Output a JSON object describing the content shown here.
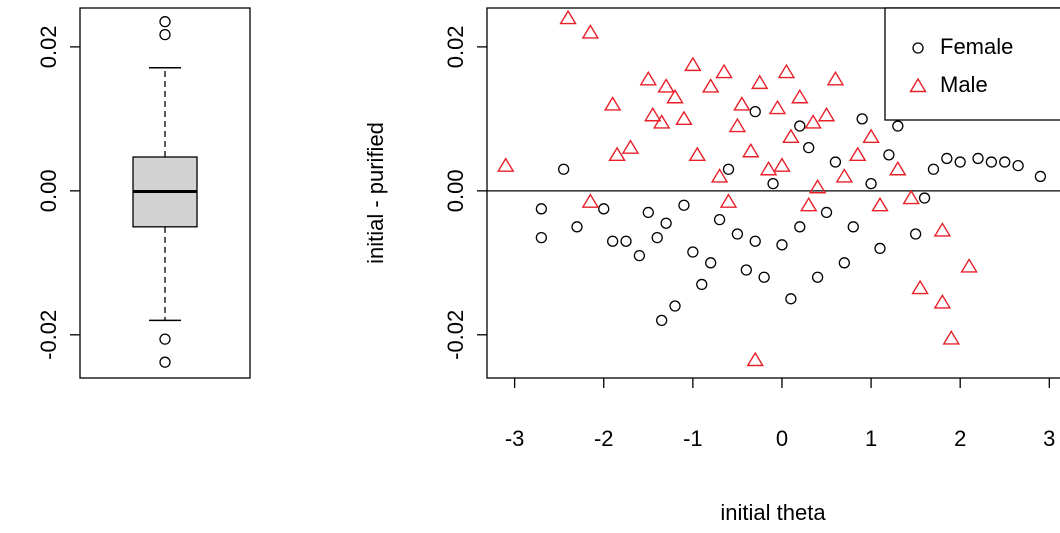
{
  "chart_data": [
    {
      "type": "box",
      "fill": "#d3d3d3",
      "ylim": [
        -0.026,
        0.0254
      ],
      "yticks": [
        -0.02,
        {
          "value": 0,
          "label": "0.00"
        },
        0.02
      ],
      "stats": {
        "whislo": -0.018,
        "q1": -0.005,
        "median": -0.0001,
        "q3": 0.0047,
        "whishi": 0.0171
      },
      "outliers": [
        0.0235,
        0.0217,
        -0.0206,
        -0.0238
      ]
    },
    {
      "type": "scatter",
      "xlabel": "initial theta",
      "ylabel": "initial - purified",
      "xlim": [
        -3.31,
        3.12
      ],
      "ylim": [
        -0.026,
        0.0254
      ],
      "xticks": [
        -3,
        -2,
        -1,
        0,
        1,
        2,
        3
      ],
      "yticks": [
        -0.02,
        {
          "value": 0,
          "label": "0.00"
        },
        0.02
      ],
      "hline": 0,
      "legend": "topright",
      "series": [
        {
          "name": "Female",
          "color": "#000000",
          "marker": "circle",
          "x": [
            -2.7,
            -2.7,
            -2.45,
            -2.3,
            -2.0,
            -1.9,
            -1.75,
            -1.6,
            -1.5,
            -1.4,
            -1.3,
            -1.35,
            -1.2,
            -1.1,
            -1.0,
            -0.9,
            -0.8,
            -0.7,
            -0.6,
            -0.5,
            -0.4,
            -0.3,
            -0.2,
            -0.1,
            0.0,
            0.1,
            0.2,
            0.3,
            0.4,
            0.5,
            0.6,
            0.7,
            0.8,
            0.9,
            1.0,
            1.1,
            1.2,
            1.3,
            1.5,
            1.6,
            1.7,
            1.85,
            2.0,
            2.2,
            2.35,
            2.5,
            2.65,
            2.9,
            -0.3,
            0.2
          ],
          "values": [
            -0.0025,
            -0.0065,
            0.003,
            -0.005,
            -0.0025,
            -0.007,
            -0.007,
            -0.009,
            -0.003,
            -0.0065,
            -0.0045,
            -0.018,
            -0.016,
            -0.002,
            -0.0085,
            -0.013,
            -0.01,
            -0.004,
            0.003,
            -0.006,
            -0.011,
            -0.007,
            -0.012,
            0.001,
            -0.0075,
            -0.015,
            -0.005,
            0.006,
            -0.012,
            -0.003,
            0.004,
            -0.01,
            -0.005,
            0.01,
            0.001,
            -0.008,
            0.005,
            0.009,
            -0.006,
            -0.001,
            0.003,
            0.0045,
            0.004,
            0.0045,
            0.004,
            0.004,
            0.0035,
            0.002,
            0.011,
            0.009
          ]
        },
        {
          "name": "Male",
          "color": "#e8202a",
          "marker": "triangle",
          "x": [
            -3.1,
            -2.4,
            -2.15,
            -2.15,
            -1.9,
            -1.85,
            -1.7,
            -1.5,
            -1.45,
            -1.35,
            -1.3,
            -1.2,
            -1.1,
            -1.0,
            -0.95,
            -0.8,
            -0.7,
            -0.65,
            -0.5,
            -0.45,
            -0.35,
            -0.3,
            -0.25,
            -0.15,
            -0.05,
            0.05,
            0.1,
            0.2,
            0.3,
            0.35,
            0.5,
            0.6,
            0.7,
            0.85,
            1.0,
            1.1,
            1.3,
            1.45,
            1.55,
            1.8,
            1.8,
            1.9,
            2.1,
            -0.6,
            0.0,
            0.4
          ],
          "values": [
            0.0035,
            0.024,
            0.022,
            -0.0015,
            0.012,
            0.005,
            0.006,
            0.0155,
            0.0105,
            0.0095,
            0.0145,
            0.013,
            0.01,
            0.0175,
            0.005,
            0.0145,
            0.002,
            0.0165,
            0.009,
            0.012,
            0.0055,
            -0.0235,
            0.015,
            0.003,
            0.0115,
            0.0165,
            0.0075,
            0.013,
            -0.002,
            0.0095,
            0.0105,
            0.0155,
            0.002,
            0.005,
            0.0075,
            -0.002,
            0.003,
            -0.001,
            -0.0135,
            -0.0155,
            -0.0055,
            -0.0205,
            -0.0105,
            -0.0015,
            0.0035,
            0.0005
          ]
        }
      ]
    }
  ]
}
